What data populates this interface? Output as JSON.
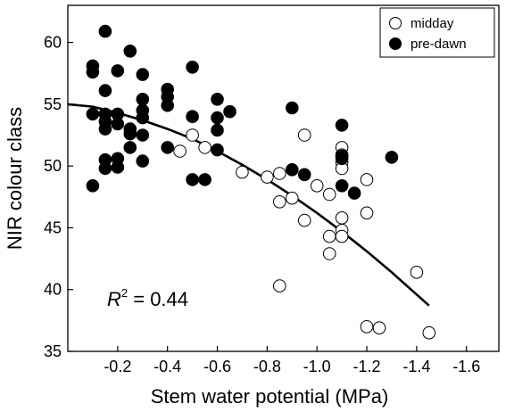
{
  "chart_data": {
    "type": "scatter",
    "xlabel": "Stem water potential (MPa)",
    "ylabel": "NIR colour class",
    "xlim": [
      0.0,
      -1.73
    ],
    "ylim": [
      35,
      63
    ],
    "xticks": [
      -0.2,
      -0.4,
      -0.6,
      -0.8,
      -1.0,
      -1.2,
      -1.4,
      -1.6
    ],
    "xtick_labels": [
      "-0.2",
      "-0.4",
      "-0.6",
      "-0.8",
      "-1.0",
      "-1.2",
      "-1.4",
      "-1.6"
    ],
    "yticks": [
      35,
      40,
      45,
      50,
      55,
      60
    ],
    "ytick_labels": [
      "35",
      "40",
      "45",
      "50",
      "55",
      "60"
    ],
    "legend_position": "top-right",
    "series": [
      {
        "name": "midday",
        "marker": "open-circle",
        "points": [
          [
            -0.45,
            51.2
          ],
          [
            -0.5,
            52.5
          ],
          [
            -0.55,
            51.5
          ],
          [
            -0.7,
            49.5
          ],
          [
            -0.8,
            49.1
          ],
          [
            -0.85,
            49.4
          ],
          [
            -0.85,
            47.1
          ],
          [
            -0.85,
            40.3
          ],
          [
            -0.9,
            47.4
          ],
          [
            -0.95,
            52.5
          ],
          [
            -0.95,
            45.6
          ],
          [
            -1.0,
            48.4
          ],
          [
            -1.05,
            47.7
          ],
          [
            -1.05,
            44.3
          ],
          [
            -1.05,
            42.9
          ],
          [
            -1.1,
            51.5
          ],
          [
            -1.1,
            50.9
          ],
          [
            -1.1,
            50.3
          ],
          [
            -1.1,
            49.8
          ],
          [
            -1.1,
            45.8
          ],
          [
            -1.1,
            44.8
          ],
          [
            -1.1,
            44.3
          ],
          [
            -1.2,
            48.9
          ],
          [
            -1.2,
            46.2
          ],
          [
            -1.2,
            37.0
          ],
          [
            -1.25,
            36.9
          ],
          [
            -1.4,
            41.4
          ],
          [
            -1.45,
            36.5
          ]
        ]
      },
      {
        "name": "pre-dawn",
        "marker": "filled-circle",
        "points": [
          [
            -0.1,
            58.1
          ],
          [
            -0.1,
            57.6
          ],
          [
            -0.1,
            54.2
          ],
          [
            -0.1,
            48.4
          ],
          [
            -0.15,
            60.9
          ],
          [
            -0.15,
            56.1
          ],
          [
            -0.15,
            54.2
          ],
          [
            -0.15,
            53.6
          ],
          [
            -0.15,
            53.0
          ],
          [
            -0.15,
            50.5
          ],
          [
            -0.15,
            49.8
          ],
          [
            -0.2,
            57.7
          ],
          [
            -0.2,
            54.2
          ],
          [
            -0.2,
            53.4
          ],
          [
            -0.2,
            50.6
          ],
          [
            -0.2,
            49.9
          ],
          [
            -0.25,
            59.3
          ],
          [
            -0.25,
            53.0
          ],
          [
            -0.25,
            52.6
          ],
          [
            -0.25,
            51.5
          ],
          [
            -0.3,
            57.4
          ],
          [
            -0.3,
            55.4
          ],
          [
            -0.3,
            54.5
          ],
          [
            -0.3,
            53.9
          ],
          [
            -0.3,
            52.5
          ],
          [
            -0.3,
            50.4
          ],
          [
            -0.4,
            56.2
          ],
          [
            -0.4,
            55.6
          ],
          [
            -0.4,
            54.9
          ],
          [
            -0.4,
            51.5
          ],
          [
            -0.5,
            58.0
          ],
          [
            -0.5,
            54.0
          ],
          [
            -0.5,
            48.9
          ],
          [
            -0.55,
            48.9
          ],
          [
            -0.6,
            55.4
          ],
          [
            -0.6,
            53.9
          ],
          [
            -0.6,
            52.9
          ],
          [
            -0.6,
            51.3
          ],
          [
            -0.65,
            54.4
          ],
          [
            -0.9,
            54.7
          ],
          [
            -0.9,
            49.7
          ],
          [
            -0.95,
            49.3
          ],
          [
            -1.1,
            53.3
          ],
          [
            -1.1,
            50.8
          ],
          [
            -1.1,
            50.6
          ],
          [
            -1.1,
            48.4
          ],
          [
            -1.15,
            47.8
          ],
          [
            -1.3,
            50.7
          ]
        ]
      }
    ],
    "fit": {
      "type": "quadratic",
      "x": [
        0.0,
        -0.1,
        -0.2,
        -0.3,
        -0.4,
        -0.5,
        -0.6,
        -0.7,
        -0.8,
        -0.9,
        -1.0,
        -1.1,
        -1.2,
        -1.3,
        -1.4,
        -1.45
      ],
      "y": [
        55.0,
        54.8,
        54.3,
        53.7,
        53.0,
        52.2,
        51.2,
        50.1,
        48.9,
        47.6,
        46.2,
        44.7,
        43.1,
        41.4,
        39.6,
        38.7
      ]
    },
    "annotation": {
      "label": "R",
      "superscript": "2",
      "text": " = 0.44"
    }
  }
}
